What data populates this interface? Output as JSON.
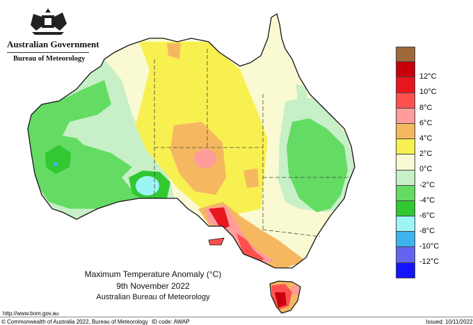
{
  "header": {
    "crest": "australian-coat-of-arms",
    "government": "Australian Government",
    "bureau": "Bureau of Meteorology"
  },
  "map": {
    "title": "Maximum Temperature Anomaly (°C)",
    "date": "9th November 2022",
    "organisation": "Australian Bureau of Meteorology"
  },
  "legend": [
    {
      "label": "",
      "color": "#a0693a"
    },
    {
      "label": "12°C",
      "color": "#c8000a"
    },
    {
      "label": "10°C",
      "color": "#e8141e"
    },
    {
      "label": "8°C",
      "color": "#ff5050"
    },
    {
      "label": "6°C",
      "color": "#ff9c9c"
    },
    {
      "label": "4°C",
      "color": "#f5b860"
    },
    {
      "label": "2°C",
      "color": "#f8f050"
    },
    {
      "label": "0°C",
      "color": "#fafad2"
    },
    {
      "label": "-2°C",
      "color": "#c8f0c8"
    },
    {
      "label": "-4°C",
      "color": "#64dc64"
    },
    {
      "label": "-6°C",
      "color": "#32c832"
    },
    {
      "label": "-8°C",
      "color": "#9cf5f5"
    },
    {
      "label": "-10°C",
      "color": "#3cb4f0"
    },
    {
      "label": "-12°C",
      "color": "#6464f0"
    },
    {
      "label": "",
      "color": "#1414ff"
    }
  ],
  "footer": {
    "url": "http://www.bom.gov.au",
    "copyright": "© Commonwealth of Australia 2022, Bureau of Meteorology",
    "id_code": "ID code: AWAP",
    "issued": "Issued: 10/11/2022"
  }
}
